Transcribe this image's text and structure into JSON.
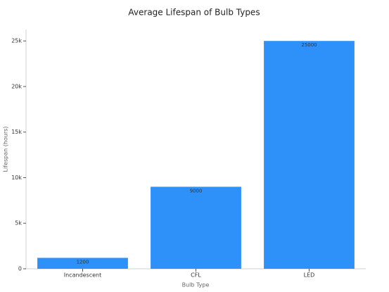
{
  "chart_data": {
    "type": "bar",
    "title": "Average Lifespan of Bulb Types",
    "x_label": "Bulb Type",
    "y_label": "Lifespan (hours)",
    "categories": [
      "Incandescent",
      "CFL",
      "LED"
    ],
    "values": [
      1200,
      9000,
      25000
    ],
    "color": "#2e91fa",
    "ylim": [
      0,
      26250
    ],
    "yticks": [
      0,
      {
        "value": 5000,
        "label": "5k"
      },
      {
        "value": 10000,
        "label": "10k"
      },
      {
        "value": 15000,
        "label": "15k"
      },
      {
        "value": 20000,
        "label": "20k"
      },
      {
        "value": 25000,
        "label": "25k"
      }
    ],
    "grid": false
  }
}
